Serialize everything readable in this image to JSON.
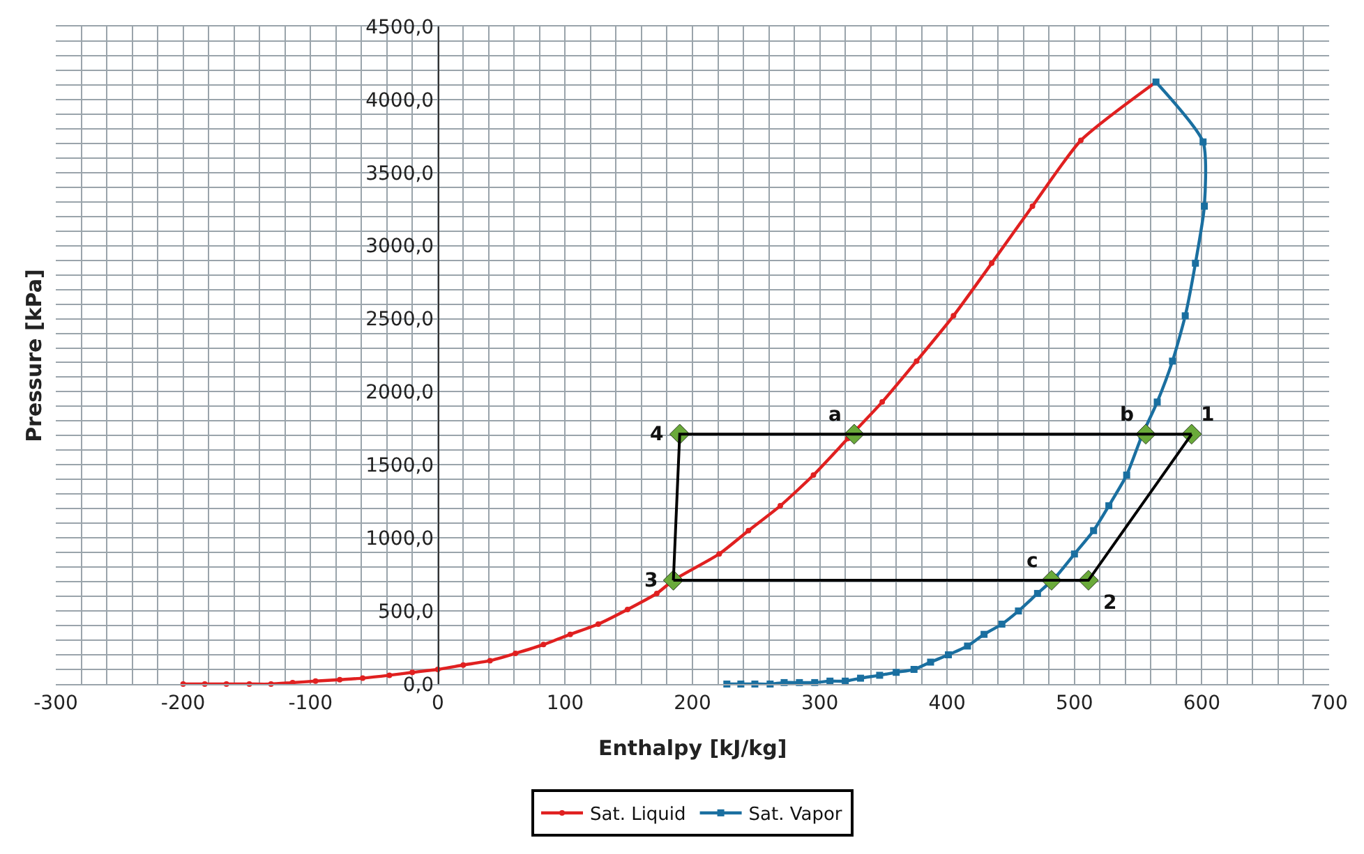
{
  "chart_data": {
    "type": "line",
    "xlabel": "Enthalpy [kJ/kg]",
    "ylabel": "Pressure [kPa]",
    "xlim": [
      -300,
      700
    ],
    "xticks": [
      -300,
      {
        "value": -280,
        "label": null
      },
      {
        "value": -260,
        "label": null
      },
      {
        "value": -240,
        "label": null
      },
      {
        "value": -220,
        "label": null
      },
      -200,
      {
        "value": -180,
        "label": null
      },
      {
        "value": -160,
        "label": null
      },
      {
        "value": -140,
        "label": null
      },
      {
        "value": -120,
        "label": null
      },
      -100,
      {
        "value": -80,
        "label": null
      },
      {
        "value": -60,
        "label": null
      },
      {
        "value": -40,
        "label": null
      },
      {
        "value": -20,
        "label": null
      },
      0,
      {
        "value": 20,
        "label": null
      },
      {
        "value": 40,
        "label": null
      },
      {
        "value": 60,
        "label": null
      },
      {
        "value": 80,
        "label": null
      },
      100,
      {
        "value": 120,
        "label": null
      },
      {
        "value": 140,
        "label": null
      },
      {
        "value": 160,
        "label": null
      },
      {
        "value": 180,
        "label": null
      },
      200,
      {
        "value": 220,
        "label": null
      },
      {
        "value": 240,
        "label": null
      },
      {
        "value": 260,
        "label": null
      },
      {
        "value": 280,
        "label": null
      },
      300,
      {
        "value": 320,
        "label": null
      },
      {
        "value": 340,
        "label": null
      },
      {
        "value": 360,
        "label": null
      },
      {
        "value": 380,
        "label": null
      },
      400,
      {
        "value": 420,
        "label": null
      },
      {
        "value": 440,
        "label": null
      },
      {
        "value": 460,
        "label": null
      },
      {
        "value": 480,
        "label": null
      },
      500,
      {
        "value": 520,
        "label": null
      },
      {
        "value": 540,
        "label": null
      },
      {
        "value": 560,
        "label": null
      },
      {
        "value": 580,
        "label": null
      },
      600,
      {
        "value": 620,
        "label": null
      },
      {
        "value": 640,
        "label": null
      },
      {
        "value": 660,
        "label": null
      },
      {
        "value": 680,
        "label": null
      },
      700
    ],
    "ylim": [
      0,
      4500
    ],
    "yticks": [
      {
        "value": 0,
        "label": "0,0"
      },
      {
        "value": 100,
        "label": null
      },
      {
        "value": 200,
        "label": null
      },
      {
        "value": 300,
        "label": null
      },
      {
        "value": 400,
        "label": null
      },
      {
        "value": 500,
        "label": "500,0"
      },
      {
        "value": 600,
        "label": null
      },
      {
        "value": 700,
        "label": null
      },
      {
        "value": 800,
        "label": null
      },
      {
        "value": 900,
        "label": null
      },
      {
        "value": 1000,
        "label": "1000,0"
      },
      {
        "value": 1100,
        "label": null
      },
      {
        "value": 1200,
        "label": null
      },
      {
        "value": 1300,
        "label": null
      },
      {
        "value": 1400,
        "label": null
      },
      {
        "value": 1500,
        "label": "1500,0"
      },
      {
        "value": 1600,
        "label": null
      },
      {
        "value": 1700,
        "label": null
      },
      {
        "value": 1800,
        "label": null
      },
      {
        "value": 1900,
        "label": null
      },
      {
        "value": 2000,
        "label": "2000,0"
      },
      {
        "value": 2100,
        "label": null
      },
      {
        "value": 2200,
        "label": null
      },
      {
        "value": 2300,
        "label": null
      },
      {
        "value": 2400,
        "label": null
      },
      {
        "value": 2500,
        "label": "2500,0"
      },
      {
        "value": 2600,
        "label": null
      },
      {
        "value": 2700,
        "label": null
      },
      {
        "value": 2800,
        "label": null
      },
      {
        "value": 2900,
        "label": null
      },
      {
        "value": 3000,
        "label": "3000,0"
      },
      {
        "value": 3100,
        "label": null
      },
      {
        "value": 3200,
        "label": null
      },
      {
        "value": 3300,
        "label": null
      },
      {
        "value": 3400,
        "label": null
      },
      {
        "value": 3500,
        "label": "3500,0"
      },
      {
        "value": 3600,
        "label": null
      },
      {
        "value": 3700,
        "label": null
      },
      {
        "value": 3800,
        "label": null
      },
      {
        "value": 3900,
        "label": null
      },
      {
        "value": 4000,
        "label": "4000,0"
      },
      {
        "value": 4100,
        "label": null
      },
      {
        "value": 4200,
        "label": null
      },
      {
        "value": 4300,
        "label": null
      },
      {
        "value": 4400,
        "label": null
      },
      {
        "value": 4500,
        "label": "4500,0"
      }
    ],
    "grid": true,
    "legend": "bottom",
    "series": [
      {
        "name": "Sat. Liquid",
        "color": "#e02020",
        "marker": "circle",
        "x": [
          -200,
          -183,
          -166,
          -148,
          -131,
          -114,
          -96,
          -77,
          -59,
          -38,
          -20,
          0,
          20,
          41,
          61,
          83,
          104,
          126,
          149,
          172,
          185,
          221,
          244,
          269,
          295,
          322,
          349,
          376,
          405,
          435,
          467,
          505,
          564
        ],
        "values": [
          0,
          0,
          0,
          0,
          0,
          10,
          20,
          30,
          40,
          60,
          80,
          100,
          130,
          160,
          210,
          270,
          340,
          410,
          510,
          620,
          710,
          890,
          1050,
          1220,
          1430,
          1680,
          1930,
          2210,
          2520,
          2880,
          3270,
          3720,
          4120
        ]
      },
      {
        "name": "Sat. Vapor",
        "color": "#1a6fa0",
        "marker": "square",
        "x": [
          227,
          238,
          249,
          261,
          272,
          284,
          296,
          308,
          320,
          332,
          347,
          360,
          374,
          387,
          401,
          416,
          429,
          443,
          456,
          471,
          485,
          500,
          515,
          527,
          541,
          553,
          565,
          577,
          587,
          595,
          602,
          601,
          564
        ],
        "values": [
          0,
          0,
          0,
          0,
          10,
          10,
          10,
          20,
          20,
          40,
          60,
          80,
          100,
          150,
          200,
          260,
          340,
          410,
          500,
          620,
          730,
          890,
          1050,
          1220,
          1430,
          1700,
          1930,
          2210,
          2520,
          2880,
          3270,
          3710,
          4120
        ]
      },
      {
        "type": "scatter",
        "color": "#6aaa3a",
        "marker": "diamond",
        "x": [
          592,
          511,
          185,
          190,
          327,
          556,
          482
        ],
        "values": [
          1710,
          710,
          710,
          1710,
          1710,
          1710,
          710
        ]
      },
      {
        "color": "#000000",
        "marker": "none",
        "x": [
          185,
          190,
          592
        ],
        "values": [
          710,
          1710,
          1710
        ]
      },
      {
        "color": "#000000",
        "marker": "none",
        "x": [
          185,
          511,
          592
        ],
        "values": [
          710,
          710,
          1710
        ]
      }
    ],
    "annotations": [
      {
        "text": "1",
        "x": 592,
        "y": 1710
      },
      {
        "text": "2",
        "x": 511,
        "y": 710
      },
      {
        "text": "3",
        "x": 185,
        "y": 710
      },
      {
        "text": "4",
        "x": 190,
        "y": 1710
      },
      {
        "text": "a",
        "x": 327,
        "y": 1710
      },
      {
        "text": "b",
        "x": 556,
        "y": 1710
      },
      {
        "text": "c",
        "x": 482,
        "y": 710
      }
    ]
  }
}
